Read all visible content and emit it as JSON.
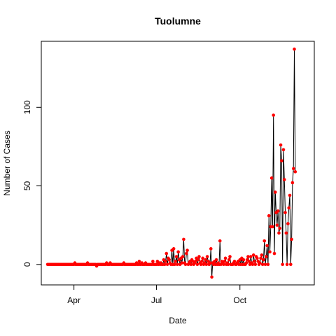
{
  "chart_data": {
    "type": "line",
    "title": "Tuolumne",
    "xlabel": "Date",
    "ylabel": "Number of Cases",
    "x_start": "2020-03-03",
    "x_ticks": [
      {
        "label": "Apr",
        "date": "2020-04-01"
      },
      {
        "label": "Jul",
        "date": "2020-07-01"
      },
      {
        "label": "Oct",
        "date": "2020-10-01"
      }
    ],
    "y_ticks": [
      0,
      50,
      100
    ],
    "xlim": [
      "2020-02-25",
      "2020-12-22"
    ],
    "ylim": [
      -13,
      142
    ],
    "grid": false,
    "line_color": "#000000",
    "point_color": "#ff0000",
    "series": [
      {
        "values": [
          0,
          0,
          0,
          0,
          0,
          0,
          0,
          0,
          0,
          0,
          0,
          0,
          0,
          0,
          0,
          0,
          0,
          0,
          0,
          0,
          0,
          0,
          0,
          0,
          0,
          0,
          0,
          0,
          0,
          0,
          1,
          0,
          0,
          0,
          0,
          0,
          0,
          0,
          0,
          0,
          0,
          0,
          0,
          0,
          1,
          0,
          0,
          0,
          0,
          0,
          0,
          0,
          0,
          0,
          -1,
          0,
          0,
          0,
          0,
          0,
          0,
          0,
          0,
          0,
          0,
          1,
          0,
          0,
          0,
          1,
          0,
          0,
          0,
          0,
          0,
          0,
          0,
          0,
          0,
          0,
          0,
          0,
          0,
          0,
          1,
          0,
          0,
          0,
          0,
          0,
          0,
          0,
          0,
          0,
          0,
          0,
          0,
          0,
          1,
          0,
          0,
          2,
          0,
          0,
          1,
          0,
          0,
          0,
          1,
          0,
          0,
          0,
          0,
          0,
          0,
          0,
          2,
          0,
          0,
          0,
          0,
          2,
          0,
          1,
          0,
          1,
          0,
          0,
          3,
          0,
          2,
          7,
          0,
          4,
          3,
          1,
          0,
          9,
          0,
          10,
          0,
          2,
          5,
          0,
          8,
          3,
          0,
          4,
          1,
          5,
          16,
          1,
          0,
          7,
          9,
          0,
          1,
          2,
          0,
          3,
          2,
          0,
          1,
          2,
          4,
          0,
          3,
          5,
          1,
          0,
          2,
          4,
          0,
          1,
          3,
          0,
          5,
          2,
          0,
          1,
          10,
          -8,
          1,
          0,
          2,
          0,
          3,
          0,
          1,
          0,
          15,
          0,
          2,
          1,
          0,
          2,
          4,
          0,
          1,
          0,
          3,
          5,
          0,
          0,
          0,
          1,
          2,
          0,
          0,
          1,
          2,
          0,
          3,
          0,
          4,
          0,
          3,
          0,
          0,
          1,
          3,
          5,
          2,
          0,
          5,
          1,
          0,
          6,
          2,
          0,
          5,
          4,
          2,
          0,
          1,
          4,
          6,
          0,
          3,
          15,
          0,
          5,
          12,
          0,
          31,
          8,
          24,
          55,
          24,
          95,
          7,
          46,
          33,
          25,
          34,
          20,
          23,
          76,
          66,
          0,
          73,
          54,
          33,
          20,
          0,
          26,
          36,
          44,
          0,
          16,
          52,
          61,
          137,
          59
        ]
      }
    ]
  }
}
